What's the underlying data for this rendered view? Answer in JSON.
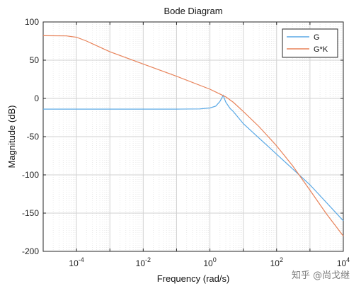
{
  "chart_data": {
    "type": "line",
    "title": "Bode Diagram",
    "xlabel": "Frequency  (rad/s)",
    "ylabel": "Magnitude (dB)",
    "xscale": "log",
    "xlim": [
      1e-05,
      10000
    ],
    "ylim": [
      -200,
      100
    ],
    "grid": true,
    "minor_grid": true,
    "legend_placement": "top-right",
    "xticks": [
      {
        "value": 0.0001,
        "base": "10",
        "exp": "-4"
      },
      {
        "value": 0.01,
        "base": "10",
        "exp": "-2"
      },
      {
        "value": 1,
        "base": "10",
        "exp": "0"
      },
      {
        "value": 100,
        "base": "10",
        "exp": "2"
      },
      {
        "value": 10000,
        "base": "10",
        "exp": "4"
      }
    ],
    "yticks": [
      100,
      50,
      0,
      -50,
      -100,
      -150,
      -200
    ],
    "series": [
      {
        "name": "G",
        "color": "#5aa9e6",
        "points": [
          [
            1e-05,
            -14
          ],
          [
            0.0001,
            -14
          ],
          [
            0.001,
            -14
          ],
          [
            0.01,
            -14
          ],
          [
            0.1,
            -14
          ],
          [
            0.5,
            -13.7
          ],
          [
            1.0,
            -12.5
          ],
          [
            1.5,
            -10
          ],
          [
            2.0,
            -4
          ],
          [
            2.5,
            4
          ],
          [
            3.0,
            -5
          ],
          [
            4.0,
            -13
          ],
          [
            5.0,
            -17
          ],
          [
            10,
            -33
          ],
          [
            30,
            -52
          ],
          [
            100,
            -73
          ],
          [
            1000,
            -113
          ],
          [
            10000,
            -160
          ]
        ]
      },
      {
        "name": "G*K",
        "color": "#e8835a",
        "points": [
          [
            1e-05,
            82
          ],
          [
            5e-05,
            81.8
          ],
          [
            0.0001,
            80
          ],
          [
            0.0002,
            75
          ],
          [
            0.001,
            61
          ],
          [
            0.01,
            45
          ],
          [
            0.1,
            29
          ],
          [
            1.0,
            12
          ],
          [
            3.0,
            2
          ],
          [
            5.0,
            -5
          ],
          [
            10,
            -17
          ],
          [
            30,
            -37
          ],
          [
            100,
            -62
          ],
          [
            300,
            -88
          ],
          [
            1000,
            -120
          ],
          [
            3000,
            -150
          ],
          [
            10000,
            -180
          ]
        ]
      }
    ]
  },
  "watermark": "知乎 @尚戈继"
}
